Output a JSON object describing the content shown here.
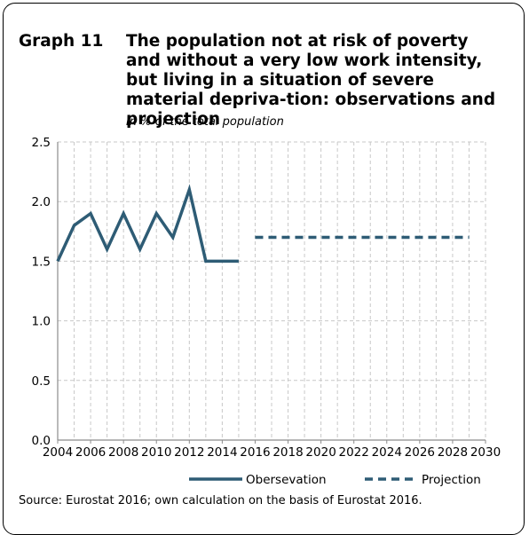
{
  "header": {
    "graph_number": "Graph 11",
    "title": "The population not at risk of poverty and without a very low work intensity, but living in a situation of severe material depriva-tion: observations and projection",
    "subtitle": "In % of the total population"
  },
  "source": "Source: Eurostat 2016; own calculation on the basis of Eurostat 2016.",
  "colors": {
    "series": "#2e5c75",
    "grid": "#c8c8c8",
    "axis": "#8c8c8c"
  },
  "chart_data": {
    "type": "line",
    "xlim": [
      2004,
      2030
    ],
    "ylim": [
      0,
      2.5
    ],
    "x_ticks": [
      "2004",
      "2006",
      "2008",
      "2010",
      "2012",
      "2014",
      "2016",
      "2018",
      "2020",
      "2022",
      "2024",
      "2026",
      "2028",
      "2030"
    ],
    "y_ticks": [
      "0.0",
      "0.5",
      "1.0",
      "1.5",
      "2.0",
      "2.5"
    ],
    "grid": true,
    "legend_position": "bottom",
    "series": [
      {
        "name": "Obersevation",
        "style": "solid",
        "x": [
          2004,
          2005,
          2006,
          2007,
          2008,
          2009,
          2010,
          2011,
          2012,
          2013,
          2014,
          2015
        ],
        "y": [
          1.5,
          1.8,
          1.9,
          1.6,
          1.9,
          1.6,
          1.9,
          1.7,
          2.1,
          1.5,
          1.5,
          1.5
        ]
      },
      {
        "name": "Projection",
        "style": "dashed",
        "x": [
          2016,
          2029
        ],
        "y": [
          1.7,
          1.7
        ]
      }
    ]
  }
}
